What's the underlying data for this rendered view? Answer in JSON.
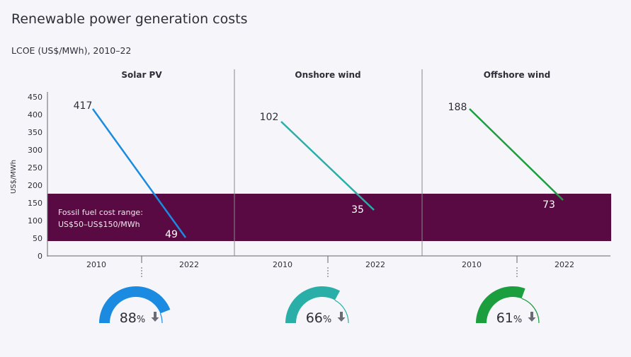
{
  "title": "Renewable power generation costs",
  "subtitle": "LCOE (US$/MWh), 2010–22",
  "chart_data": {
    "type": "line",
    "ylabel": "US$/MWh",
    "ylim": [
      0,
      450
    ],
    "yticks": [
      "0",
      "50",
      "100",
      "150",
      "200",
      "250",
      "300",
      "350",
      "400",
      "450"
    ],
    "x": [
      "2010",
      "2022"
    ],
    "band": {
      "label1": "Fossil fuel cost range:",
      "label2": "US$50–US$150/MWh",
      "range": [
        50,
        150
      ],
      "color": "#5a0a43"
    },
    "panels": [
      {
        "name": "Solar PV",
        "values": [
          417,
          49
        ],
        "labels": [
          "417",
          "49"
        ],
        "color": "#1a8be0",
        "reduction": 88,
        "pct_label": "88",
        "unit": "%"
      },
      {
        "name": "Onshore wind",
        "values": [
          102,
          35
        ],
        "labels": [
          "102",
          "35"
        ],
        "color": "#2aafa8",
        "reduction": 66,
        "pct_label": "66",
        "unit": "%"
      },
      {
        "name": "Offshore wind",
        "values": [
          188,
          73
        ],
        "labels": [
          "188",
          "73"
        ],
        "color": "#1a9e3e",
        "reduction": 61,
        "pct_label": "61",
        "unit": "%"
      }
    ]
  }
}
